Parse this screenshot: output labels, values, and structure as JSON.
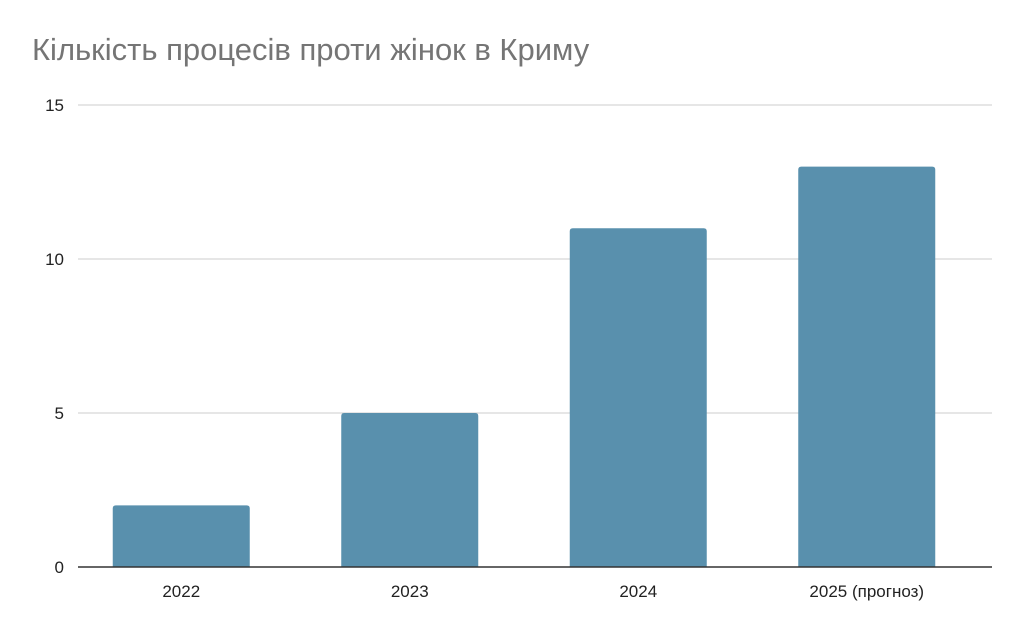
{
  "chart_data": {
    "type": "bar",
    "title": "Кількість процесів проти жінок в Криму",
    "categories": [
      "2022",
      "2023",
      "2024",
      "2025 (прогноз)"
    ],
    "values": [
      2,
      5,
      11,
      13
    ],
    "ylim": [
      0,
      15
    ],
    "yticks": [
      "0",
      "5",
      "10",
      "15"
    ],
    "xlabel": "",
    "ylabel": "",
    "grid": true,
    "legend": "none",
    "colors": {
      "bar": "#5990ad",
      "grid": "#cccccc",
      "axis": "#333333",
      "title": "#757575"
    }
  }
}
